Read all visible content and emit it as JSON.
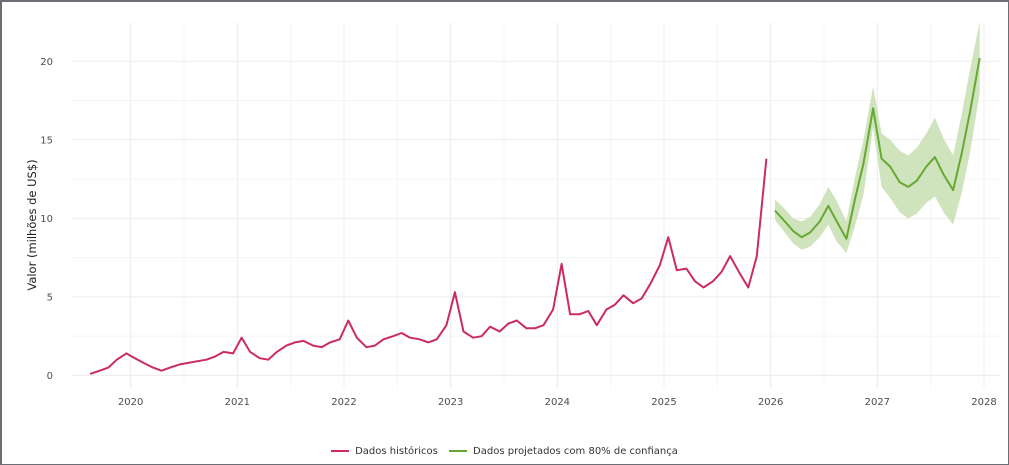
{
  "chart_data": {
    "type": "line",
    "title": "",
    "xlabel": "",
    "ylabel": "Valor (milhões de US$)",
    "xlim": [
      2019.45,
      2028.15
    ],
    "ylim": [
      -0.8,
      22.5
    ],
    "x_ticks": [
      "2020",
      "2021",
      "2022",
      "2023",
      "2024",
      "2025",
      "2026",
      "2027",
      "2028"
    ],
    "y_ticks": [
      "0",
      "5",
      "10",
      "15",
      "20"
    ],
    "grid": true,
    "legend_position": "bottom",
    "colors": {
      "historical": "#cc2a63",
      "forecast": "#66a832",
      "band": "#c7dfb0"
    },
    "series": [
      {
        "name": "Dados históricos",
        "x": [
          2019.62,
          2019.71,
          2019.79,
          2019.87,
          2019.96,
          2020.04,
          2020.12,
          2020.21,
          2020.29,
          2020.37,
          2020.46,
          2020.54,
          2020.62,
          2020.71,
          2020.79,
          2020.87,
          2020.96,
          2021.04,
          2021.12,
          2021.21,
          2021.29,
          2021.37,
          2021.46,
          2021.54,
          2021.62,
          2021.71,
          2021.79,
          2021.87,
          2021.96,
          2022.04,
          2022.12,
          2022.21,
          2022.29,
          2022.37,
          2022.46,
          2022.54,
          2022.62,
          2022.71,
          2022.79,
          2022.87,
          2022.96,
          2023.04,
          2023.12,
          2023.21,
          2023.29,
          2023.37,
          2023.46,
          2023.54,
          2023.62,
          2023.71,
          2023.79,
          2023.87,
          2023.96,
          2024.04,
          2024.12,
          2024.21,
          2024.29,
          2024.37,
          2024.46,
          2024.54,
          2024.62,
          2024.71,
          2024.79,
          2024.87,
          2024.96,
          2025.04,
          2025.12,
          2025.21,
          2025.29,
          2025.37,
          2025.46,
          2025.54,
          2025.62,
          2025.71,
          2025.79,
          2025.87,
          2025.96
        ],
        "y": [
          0.1,
          0.3,
          0.5,
          1.0,
          1.4,
          1.1,
          0.8,
          0.5,
          0.3,
          0.5,
          0.7,
          0.8,
          0.9,
          1.0,
          1.2,
          1.5,
          1.4,
          2.4,
          1.5,
          1.1,
          1.0,
          1.5,
          1.9,
          2.1,
          2.2,
          1.9,
          1.8,
          2.1,
          2.3,
          3.5,
          2.4,
          1.8,
          1.9,
          2.3,
          2.5,
          2.7,
          2.4,
          2.3,
          2.1,
          2.3,
          3.2,
          5.3,
          2.8,
          2.4,
          2.5,
          3.1,
          2.8,
          3.3,
          3.5,
          3.0,
          3.0,
          3.2,
          4.2,
          7.1,
          3.9,
          3.9,
          4.1,
          3.2,
          4.2,
          4.5,
          5.1,
          4.6,
          4.9,
          5.8,
          7.0,
          8.8,
          6.7,
          6.8,
          6.0,
          5.6,
          6.0,
          6.6,
          7.6,
          6.5,
          5.6,
          7.6,
          13.8
        ]
      },
      {
        "name": "Dados projetados com 80% de confiança",
        "x": [
          2026.04,
          2026.12,
          2026.21,
          2026.29,
          2026.37,
          2026.46,
          2026.54,
          2026.62,
          2026.71,
          2026.79,
          2026.87,
          2026.96,
          2027.04,
          2027.12,
          2027.21,
          2027.29,
          2027.37,
          2027.46,
          2027.54,
          2027.62,
          2027.71,
          2027.79,
          2027.87,
          2027.96
        ],
        "y": [
          10.5,
          9.9,
          9.2,
          8.8,
          9.1,
          9.8,
          10.8,
          9.8,
          8.7,
          11.2,
          13.5,
          17.0,
          13.8,
          13.3,
          12.3,
          12.0,
          12.4,
          13.3,
          13.9,
          12.8,
          11.8,
          14.1,
          16.8,
          20.2
        ],
        "lower": [
          9.9,
          9.2,
          8.4,
          8.0,
          8.2,
          8.8,
          9.6,
          8.5,
          7.8,
          9.5,
          11.5,
          15.8,
          12.0,
          11.3,
          10.4,
          10.0,
          10.3,
          11.0,
          11.4,
          10.4,
          9.6,
          11.6,
          14.2,
          18.0
        ],
        "upper": [
          11.2,
          10.7,
          10.0,
          9.8,
          10.1,
          10.9,
          12.0,
          11.1,
          9.8,
          12.6,
          15.0,
          18.4,
          15.4,
          15.0,
          14.3,
          14.0,
          14.5,
          15.4,
          16.4,
          15.1,
          14.0,
          16.6,
          19.5,
          22.5
        ]
      }
    ]
  }
}
